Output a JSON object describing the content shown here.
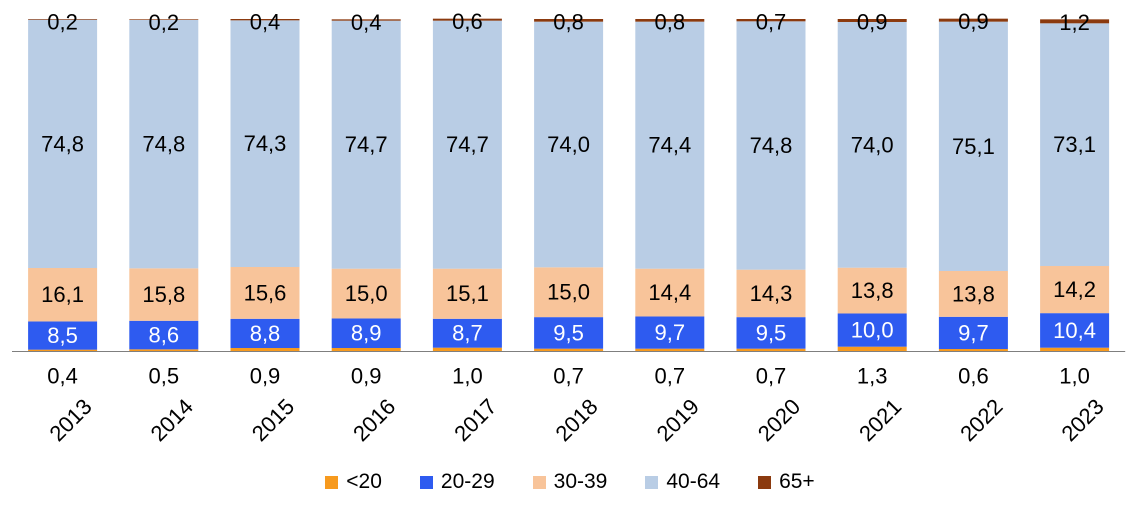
{
  "chart_data": {
    "type": "bar",
    "stacked": true,
    "percent_stacked": true,
    "categories": [
      "2013",
      "2014",
      "2015",
      "2016",
      "2017",
      "2018",
      "2019",
      "2020",
      "2021",
      "2022",
      "2023"
    ],
    "series": [
      {
        "name": "<20",
        "color": "#F79A1E",
        "values": [
          0.4,
          0.5,
          0.9,
          0.9,
          1.0,
          0.7,
          0.7,
          0.7,
          1.3,
          0.6,
          1.0
        ],
        "labels": [
          "0,4",
          "0,5",
          "0,9",
          "0,9",
          "1,0",
          "0,7",
          "0,7",
          "0,7",
          "1,3",
          "0,6",
          "1,0"
        ]
      },
      {
        "name": "20-29",
        "color": "#2E5BF0",
        "values": [
          8.5,
          8.6,
          8.8,
          8.9,
          8.7,
          9.5,
          9.7,
          9.5,
          10.0,
          9.7,
          10.4
        ],
        "labels": [
          "8,5",
          "8,6",
          "8,8",
          "8,9",
          "8,7",
          "9,5",
          "9,7",
          "9,5",
          "10,0",
          "9,7",
          "10,4"
        ]
      },
      {
        "name": "30-39",
        "color": "#F8C49A",
        "values": [
          16.1,
          15.8,
          15.6,
          15.0,
          15.1,
          15.0,
          14.4,
          14.3,
          13.8,
          13.8,
          14.2
        ],
        "labels": [
          "16,1",
          "15,8",
          "15,6",
          "15,0",
          "15,1",
          "15,0",
          "14,4",
          "14,3",
          "13,8",
          "13,8",
          "14,2"
        ]
      },
      {
        "name": "40-64",
        "color": "#B9CDE5",
        "values": [
          74.8,
          74.8,
          74.3,
          74.7,
          74.7,
          74.0,
          74.4,
          74.8,
          74.0,
          75.1,
          73.1
        ],
        "labels": [
          "74,8",
          "74,8",
          "74,3",
          "74,7",
          "74,7",
          "74,0",
          "74,4",
          "74,8",
          "74,0",
          "75,1",
          "73,1"
        ]
      },
      {
        "name": "65+",
        "color": "#8B3A0F",
        "values": [
          0.2,
          0.2,
          0.4,
          0.4,
          0.6,
          0.8,
          0.8,
          0.7,
          0.9,
          0.9,
          1.2
        ],
        "labels": [
          "0,2",
          "0,2",
          "0,4",
          "0,4",
          "0,6",
          "0,8",
          "0,8",
          "0,7",
          "0,9",
          "0,9",
          "1,2"
        ]
      }
    ],
    "ylim": [
      0,
      100
    ],
    "grid": false,
    "legend_position": "bottom",
    "under_axis_series": "<20"
  }
}
